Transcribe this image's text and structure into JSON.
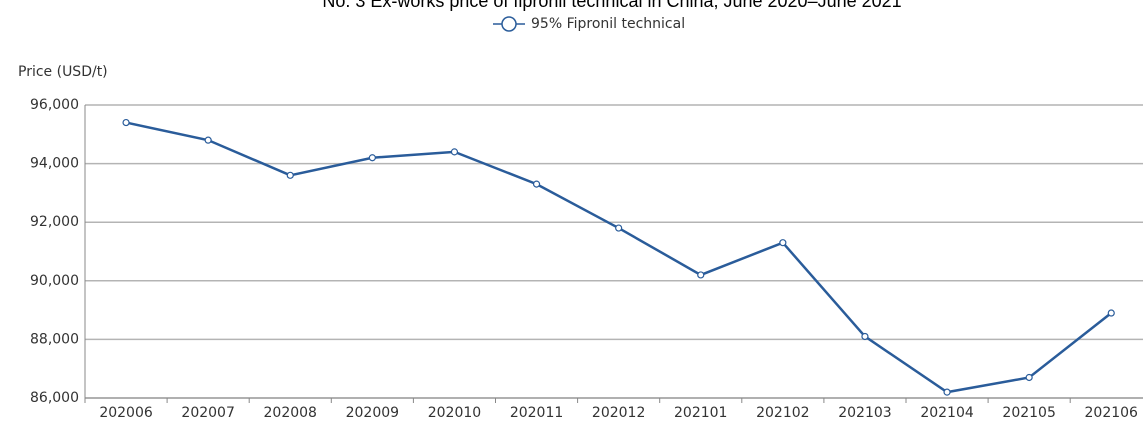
{
  "chart_data": {
    "type": "line",
    "title": "No. 3 Ex-works price of fipronil technical in China, June 2020–June 2021",
    "y_label": "Price (USD/t)",
    "categories": [
      "202006",
      "202007",
      "202008",
      "202009",
      "202010",
      "202011",
      "202012",
      "202101",
      "202102",
      "202103",
      "202104",
      "202105",
      "202106"
    ],
    "series": [
      {
        "name": "95% Fipronil technical",
        "color": "#2a5c9a",
        "values": [
          95400,
          94800,
          93600,
          94200,
          94400,
          93300,
          91800,
          90200,
          91300,
          88100,
          86200,
          86700,
          88900
        ]
      }
    ],
    "ylim": [
      86000,
      96000
    ],
    "yticks": [
      {
        "value": 86000,
        "label": "86,000"
      },
      {
        "value": 88000,
        "label": "88,000"
      },
      {
        "value": 90000,
        "label": "90,000"
      },
      {
        "value": 92000,
        "label": "92,000"
      },
      {
        "value": 94000,
        "label": "94,000"
      },
      {
        "value": 96000,
        "label": "96,000"
      }
    ],
    "grid": true,
    "legend": "top"
  }
}
